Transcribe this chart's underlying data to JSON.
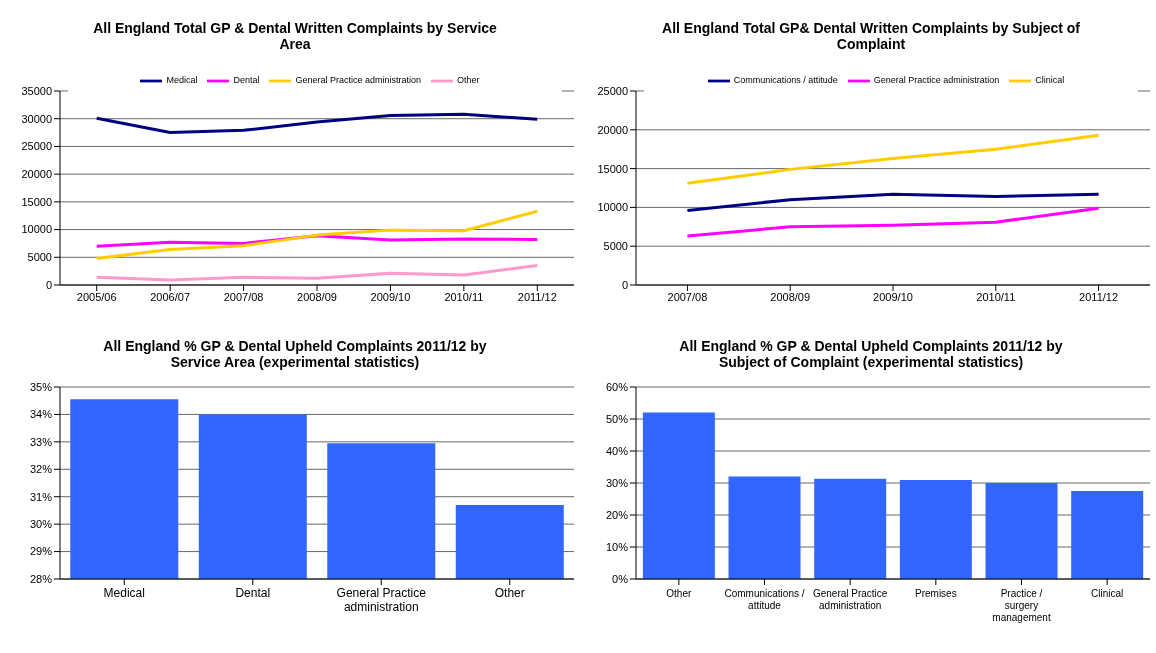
{
  "chart_data": [
    {
      "type": "line",
      "title": "All England Total GP & Dental Written Complaints by Service Area",
      "categories": [
        "2005/06",
        "2006/07",
        "2007/08",
        "2008/09",
        "2009/10",
        "2010/11",
        "2011/12"
      ],
      "series": [
        {
          "name": "Medical",
          "color": "#000080",
          "values": [
            30100,
            27500,
            27900,
            29400,
            30600,
            30800,
            29900
          ]
        },
        {
          "name": "Dental",
          "color": "#ff00ff",
          "values": [
            7000,
            7700,
            7500,
            8900,
            8100,
            8300,
            8200
          ]
        },
        {
          "name": "General Practice administration",
          "color": "#ffcc00",
          "values": [
            4800,
            6400,
            7100,
            9000,
            9900,
            9800,
            13300
          ]
        },
        {
          "name": "Other",
          "color": "#ff99cc",
          "values": [
            1400,
            900,
            1400,
            1200,
            2100,
            1800,
            3500
          ]
        }
      ],
      "ylim": [
        0,
        35000
      ],
      "yticks": [
        0,
        5000,
        10000,
        15000,
        20000,
        25000,
        30000,
        35000
      ],
      "grid": "y",
      "legend": "top",
      "marker": "none",
      "line_style": "solid"
    },
    {
      "type": "line",
      "title": "All England Total GP& Dental Written Complaints by Subject of Complaint",
      "categories": [
        "2007/08",
        "2008/09",
        "2009/10",
        "2010/11",
        "2011/12"
      ],
      "series": [
        {
          "name": "Communications / attitude",
          "color": "#000080",
          "values": [
            9600,
            11000,
            11700,
            11400,
            11700
          ]
        },
        {
          "name": "General Practice administration",
          "color": "#ff00ff",
          "values": [
            6300,
            7500,
            7700,
            8100,
            9900
          ]
        },
        {
          "name": "Clinical",
          "color": "#ffcc00",
          "values": [
            13100,
            14900,
            16300,
            17500,
            19300
          ]
        }
      ],
      "ylim": [
        0,
        25000
      ],
      "yticks": [
        0,
        5000,
        10000,
        15000,
        20000,
        25000
      ],
      "grid": "y",
      "legend": "top",
      "marker": "none",
      "line_style": "solid"
    },
    {
      "type": "bar",
      "title": "All England % GP & Dental Upheld Complaints 2011/12 by Service Area (experimental statistics)",
      "categories": [
        "Medical",
        "Dental",
        "General Practice administration",
        "Other"
      ],
      "values": [
        34.55,
        34.0,
        32.95,
        30.7
      ],
      "color": "#3366ff",
      "ylim": [
        28,
        35
      ],
      "yticks": [
        {
          "value": 28,
          "label": "28%"
        },
        {
          "value": 29,
          "label": "29%"
        },
        {
          "value": 30,
          "label": "30%"
        },
        {
          "value": 31,
          "label": "31%"
        },
        {
          "value": 32,
          "label": "32%"
        },
        {
          "value": 33,
          "label": "33%"
        },
        {
          "value": 34,
          "label": "34%"
        },
        {
          "value": 35,
          "label": "35%"
        }
      ],
      "grid": "y"
    },
    {
      "type": "bar",
      "title": "All England % GP & Dental Upheld Complaints 2011/12 by Subject of Complaint (experimental statistics)",
      "categories": [
        "Other",
        "Communications / attitude",
        "General Practice administration",
        "Premises",
        "Practice / surgery management",
        "Clinical"
      ],
      "values": [
        52,
        32,
        31.3,
        30.9,
        30,
        27.5
      ],
      "color": "#3366ff",
      "ylim": [
        0,
        60
      ],
      "yticks": [
        {
          "value": 0,
          "label": "0%"
        },
        {
          "value": 10,
          "label": "10%"
        },
        {
          "value": 20,
          "label": "20%"
        },
        {
          "value": 30,
          "label": "30%"
        },
        {
          "value": 40,
          "label": "40%"
        },
        {
          "value": 50,
          "label": "50%"
        },
        {
          "value": 60,
          "label": "60%"
        }
      ],
      "grid": "y"
    }
  ]
}
